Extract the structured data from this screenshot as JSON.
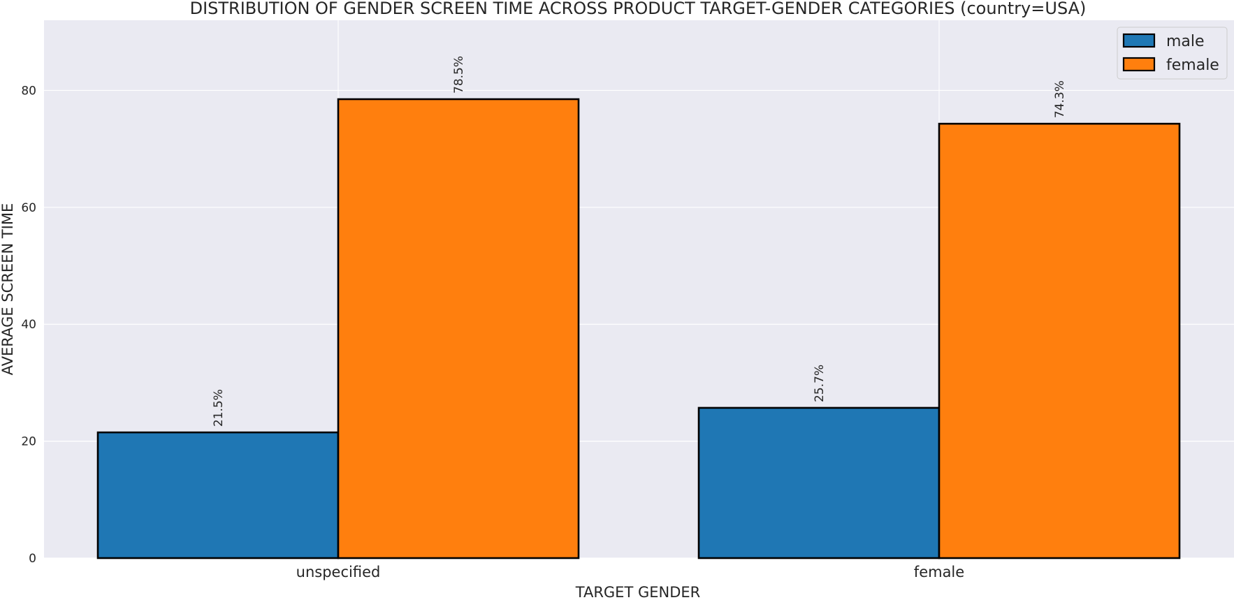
{
  "chart_data": {
    "type": "bar",
    "title": "DISTRIBUTION OF GENDER SCREEN TIME ACROSS PRODUCT TARGET-GENDER CATEGORIES (country=USA)",
    "xlabel": "TARGET GENDER",
    "ylabel": "AVERAGE SCREEN TIME",
    "categories": [
      "unspecified",
      "female"
    ],
    "series": [
      {
        "name": "male",
        "color": "#1f77b4",
        "values": [
          21.5,
          25.7
        ],
        "labels": [
          "21.5%",
          "25.7%"
        ]
      },
      {
        "name": "female",
        "color": "#ff7f0e",
        "values": [
          78.5,
          74.3
        ],
        "labels": [
          "78.5%",
          "74.3%"
        ]
      }
    ],
    "ylim": [
      0,
      92
    ],
    "yticks": [
      0,
      20,
      40,
      60,
      80
    ],
    "grid": true,
    "legend_position": "top-right",
    "background_color": "#eaeaf2",
    "grid_color": "#ffffff"
  }
}
